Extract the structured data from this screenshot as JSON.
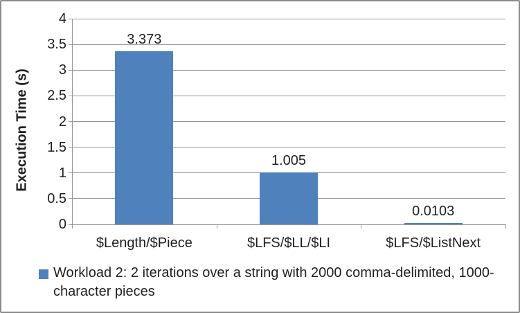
{
  "chart_data": {
    "type": "bar",
    "categories": [
      "$Length/$Piece",
      "$LFS/$LL/$LI",
      "$LFS/$ListNext"
    ],
    "values": [
      3.373,
      1.005,
      0.0103
    ],
    "value_labels": [
      "3.373",
      "1.005",
      "0.0103"
    ],
    "series_name": "Workload 2: 2 iterations over a string with 2000 comma-delimited, 1000-character pieces",
    "title": "",
    "xlabel": "",
    "ylabel": "Execution Time (s)",
    "ylim": [
      0,
      4
    ],
    "ytick_step": 0.5,
    "ytick_labels": [
      "0",
      "0.5",
      "1",
      "1.5",
      "2",
      "2.5",
      "3",
      "3.5",
      "4"
    ],
    "grid": true,
    "legend_position": "bottom",
    "colors": {
      "bar": "#4F81BD",
      "gridline": "#969696",
      "axis": "#969696",
      "text": "#1f1f1f",
      "frame_border": "#8a8a8a"
    }
  }
}
